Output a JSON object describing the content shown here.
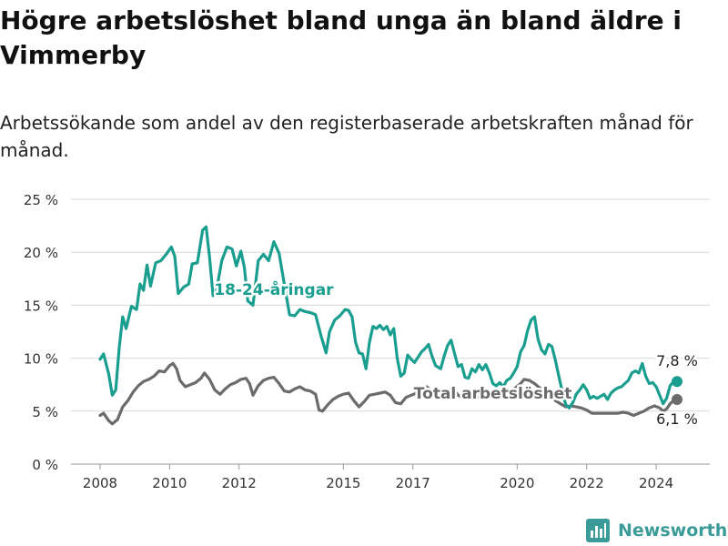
{
  "title": "Högre arbetslöshet bland unga än bland äldre i Vimmerby",
  "subtitle": "Arbetssökande som andel av den registerbaserade arbetskraften månad för månad.",
  "brand": {
    "name": "Newsworthy",
    "icon": "newsworthy-bar-chart-logo-icon"
  },
  "colors": {
    "youth": "#1a9e8f",
    "total": "#6b6b6e",
    "grid": "#d9d9d9"
  },
  "chart_data": {
    "type": "line",
    "title": "",
    "xlabel": "",
    "ylabel": "",
    "ylim": [
      0,
      25
    ],
    "yticks": [
      0,
      5,
      10,
      15,
      20,
      25
    ],
    "ytick_labels": [
      "0 %",
      "5 %",
      "10 %",
      "15 %",
      "20 %",
      "25 %"
    ],
    "xticks": [
      2008,
      2010,
      2012,
      2015,
      2017,
      2020,
      2022,
      2024
    ],
    "xtick_labels": [
      "2008",
      "2010",
      "2012",
      "2015",
      "2017",
      "2020",
      "2022",
      "2024"
    ],
    "grid": true,
    "legend": "inline labels",
    "series": [
      {
        "name": "18-24-åringar",
        "color": "#1a9e8f",
        "end_label": "7,8 %",
        "points": [
          [
            2008.0,
            9.9
          ],
          [
            2008.1,
            10.4
          ],
          [
            2008.25,
            8.5
          ],
          [
            2008.35,
            6.5
          ],
          [
            2008.45,
            7.0
          ],
          [
            2008.55,
            11.0
          ],
          [
            2008.65,
            13.9
          ],
          [
            2008.75,
            12.8
          ],
          [
            2008.9,
            14.9
          ],
          [
            2009.05,
            14.6
          ],
          [
            2009.15,
            17.0
          ],
          [
            2009.25,
            16.4
          ],
          [
            2009.35,
            18.8
          ],
          [
            2009.45,
            16.8
          ],
          [
            2009.6,
            19.0
          ],
          [
            2009.75,
            19.2
          ],
          [
            2009.9,
            19.8
          ],
          [
            2010.05,
            20.5
          ],
          [
            2010.15,
            19.6
          ],
          [
            2010.25,
            16.1
          ],
          [
            2010.4,
            16.7
          ],
          [
            2010.55,
            17.0
          ],
          [
            2010.65,
            18.9
          ],
          [
            2010.8,
            19.0
          ],
          [
            2010.95,
            22.1
          ],
          [
            2011.05,
            22.4
          ],
          [
            2011.15,
            19.5
          ],
          [
            2011.25,
            15.9
          ],
          [
            2011.35,
            16.4
          ],
          [
            2011.5,
            19.2
          ],
          [
            2011.65,
            20.5
          ],
          [
            2011.8,
            20.3
          ],
          [
            2011.92,
            18.7
          ],
          [
            2012.05,
            20.1
          ],
          [
            2012.15,
            18.6
          ],
          [
            2012.25,
            15.4
          ],
          [
            2012.4,
            15.0
          ],
          [
            2012.55,
            19.2
          ],
          [
            2012.7,
            19.8
          ],
          [
            2012.85,
            19.2
          ],
          [
            2013.0,
            21.0
          ],
          [
            2013.15,
            19.9
          ],
          [
            2013.3,
            17.0
          ],
          [
            2013.45,
            14.1
          ],
          [
            2013.6,
            14.0
          ],
          [
            2013.75,
            14.6
          ],
          [
            2013.9,
            14.4
          ],
          [
            2014.05,
            14.3
          ],
          [
            2014.2,
            14.1
          ],
          [
            2014.35,
            12.2
          ],
          [
            2014.5,
            10.5
          ],
          [
            2014.6,
            12.5
          ],
          [
            2014.75,
            13.6
          ],
          [
            2014.9,
            14.0
          ],
          [
            2015.05,
            14.6
          ],
          [
            2015.15,
            14.5
          ],
          [
            2015.25,
            13.9
          ],
          [
            2015.35,
            11.5
          ],
          [
            2015.45,
            10.5
          ],
          [
            2015.55,
            10.4
          ],
          [
            2015.65,
            9.0
          ],
          [
            2015.75,
            11.5
          ],
          [
            2015.85,
            13.0
          ],
          [
            2015.95,
            12.8
          ],
          [
            2016.05,
            13.1
          ],
          [
            2016.15,
            12.7
          ],
          [
            2016.25,
            13.0
          ],
          [
            2016.35,
            12.2
          ],
          [
            2016.45,
            12.8
          ],
          [
            2016.55,
            10.0
          ],
          [
            2016.65,
            8.3
          ],
          [
            2016.75,
            8.6
          ],
          [
            2016.85,
            10.3
          ],
          [
            2016.95,
            9.9
          ],
          [
            2017.05,
            9.6
          ],
          [
            2017.15,
            10.1
          ],
          [
            2017.25,
            10.6
          ],
          [
            2017.35,
            10.9
          ],
          [
            2017.45,
            11.3
          ],
          [
            2017.55,
            10.2
          ],
          [
            2017.65,
            9.3
          ],
          [
            2017.8,
            9.0
          ],
          [
            2017.9,
            10.2
          ],
          [
            2018.0,
            11.2
          ],
          [
            2018.1,
            11.7
          ],
          [
            2018.2,
            10.4
          ],
          [
            2018.3,
            9.2
          ],
          [
            2018.4,
            9.4
          ],
          [
            2018.5,
            8.2
          ],
          [
            2018.6,
            8.1
          ],
          [
            2018.7,
            9.0
          ],
          [
            2018.8,
            8.7
          ],
          [
            2018.9,
            9.4
          ],
          [
            2019.0,
            8.9
          ],
          [
            2019.1,
            9.4
          ],
          [
            2019.2,
            8.6
          ],
          [
            2019.3,
            7.6
          ],
          [
            2019.4,
            7.4
          ],
          [
            2019.5,
            7.7
          ],
          [
            2019.6,
            7.3
          ],
          [
            2019.7,
            7.9
          ],
          [
            2019.8,
            8.1
          ],
          [
            2019.9,
            8.6
          ],
          [
            2020.0,
            9.2
          ],
          [
            2020.1,
            10.6
          ],
          [
            2020.2,
            11.2
          ],
          [
            2020.3,
            12.6
          ],
          [
            2020.4,
            13.6
          ],
          [
            2020.5,
            13.9
          ],
          [
            2020.6,
            11.8
          ],
          [
            2020.7,
            10.8
          ],
          [
            2020.8,
            10.4
          ],
          [
            2020.9,
            11.3
          ],
          [
            2021.0,
            11.1
          ],
          [
            2021.1,
            9.8
          ],
          [
            2021.2,
            8.3
          ],
          [
            2021.3,
            6.8
          ],
          [
            2021.4,
            5.6
          ],
          [
            2021.5,
            5.3
          ],
          [
            2021.6,
            5.8
          ],
          [
            2021.7,
            6.6
          ],
          [
            2021.8,
            7.0
          ],
          [
            2021.9,
            7.5
          ],
          [
            2022.0,
            7.0
          ],
          [
            2022.1,
            6.2
          ],
          [
            2022.2,
            6.4
          ],
          [
            2022.3,
            6.2
          ],
          [
            2022.4,
            6.4
          ],
          [
            2022.5,
            6.6
          ],
          [
            2022.6,
            6.1
          ],
          [
            2022.7,
            6.7
          ],
          [
            2022.8,
            7.0
          ],
          [
            2022.9,
            7.2
          ],
          [
            2023.0,
            7.3
          ],
          [
            2023.1,
            7.6
          ],
          [
            2023.2,
            7.9
          ],
          [
            2023.3,
            8.6
          ],
          [
            2023.4,
            8.8
          ],
          [
            2023.5,
            8.6
          ],
          [
            2023.6,
            9.5
          ],
          [
            2023.7,
            8.3
          ],
          [
            2023.8,
            7.6
          ],
          [
            2023.9,
            7.7
          ],
          [
            2024.0,
            7.3
          ],
          [
            2024.1,
            6.5
          ],
          [
            2024.2,
            5.7
          ],
          [
            2024.3,
            6.2
          ],
          [
            2024.4,
            7.4
          ],
          [
            2024.5,
            7.8
          ],
          [
            2024.6,
            7.8
          ]
        ]
      },
      {
        "name": "Total arbetslöshet",
        "color": "#6b6b6e",
        "end_label": "6,1 %",
        "points": [
          [
            2008.0,
            4.6
          ],
          [
            2008.1,
            4.8
          ],
          [
            2008.25,
            4.1
          ],
          [
            2008.35,
            3.8
          ],
          [
            2008.5,
            4.2
          ],
          [
            2008.65,
            5.4
          ],
          [
            2008.8,
            6.0
          ],
          [
            2008.95,
            6.8
          ],
          [
            2009.1,
            7.4
          ],
          [
            2009.25,
            7.8
          ],
          [
            2009.4,
            8.0
          ],
          [
            2009.55,
            8.3
          ],
          [
            2009.7,
            8.8
          ],
          [
            2009.85,
            8.7
          ],
          [
            2010.0,
            9.3
          ],
          [
            2010.1,
            9.5
          ],
          [
            2010.2,
            9.0
          ],
          [
            2010.3,
            7.9
          ],
          [
            2010.45,
            7.3
          ],
          [
            2010.6,
            7.5
          ],
          [
            2010.75,
            7.7
          ],
          [
            2010.9,
            8.1
          ],
          [
            2011.0,
            8.6
          ],
          [
            2011.15,
            8.0
          ],
          [
            2011.3,
            7.0
          ],
          [
            2011.45,
            6.6
          ],
          [
            2011.6,
            7.1
          ],
          [
            2011.75,
            7.5
          ],
          [
            2011.9,
            7.7
          ],
          [
            2012.05,
            8.0
          ],
          [
            2012.2,
            8.1
          ],
          [
            2012.3,
            7.6
          ],
          [
            2012.4,
            6.5
          ],
          [
            2012.55,
            7.4
          ],
          [
            2012.7,
            7.9
          ],
          [
            2012.85,
            8.1
          ],
          [
            2013.0,
            8.2
          ],
          [
            2013.15,
            7.6
          ],
          [
            2013.3,
            6.9
          ],
          [
            2013.45,
            6.8
          ],
          [
            2013.6,
            7.1
          ],
          [
            2013.75,
            7.3
          ],
          [
            2013.9,
            7.0
          ],
          [
            2014.05,
            6.9
          ],
          [
            2014.2,
            6.6
          ],
          [
            2014.3,
            5.1
          ],
          [
            2014.4,
            5.0
          ],
          [
            2014.55,
            5.6
          ],
          [
            2014.7,
            6.1
          ],
          [
            2014.85,
            6.4
          ],
          [
            2015.0,
            6.6
          ],
          [
            2015.15,
            6.7
          ],
          [
            2015.3,
            6.0
          ],
          [
            2015.45,
            5.4
          ],
          [
            2015.6,
            5.9
          ],
          [
            2015.75,
            6.5
          ],
          [
            2015.9,
            6.6
          ],
          [
            2016.05,
            6.7
          ],
          [
            2016.2,
            6.8
          ],
          [
            2016.35,
            6.5
          ],
          [
            2016.5,
            5.8
          ],
          [
            2016.65,
            5.7
          ],
          [
            2016.8,
            6.3
          ],
          [
            2016.95,
            6.5
          ],
          [
            2017.1,
            6.7
          ],
          [
            2017.25,
            7.1
          ],
          [
            2017.4,
            7.3
          ],
          [
            2017.55,
            6.8
          ],
          [
            2017.7,
            6.5
          ],
          [
            2017.85,
            6.4
          ],
          [
            2018.0,
            6.9
          ],
          [
            2018.15,
            7.2
          ],
          [
            2018.3,
            6.5
          ],
          [
            2018.45,
            6.2
          ],
          [
            2018.6,
            6.3
          ],
          [
            2018.75,
            6.4
          ],
          [
            2018.9,
            6.3
          ],
          [
            2019.05,
            6.6
          ],
          [
            2019.2,
            6.5
          ],
          [
            2019.35,
            6.4
          ],
          [
            2019.5,
            6.3
          ],
          [
            2019.65,
            6.5
          ],
          [
            2019.8,
            6.8
          ],
          [
            2019.95,
            7.2
          ],
          [
            2020.1,
            7.6
          ],
          [
            2020.2,
            8.0
          ],
          [
            2020.35,
            7.9
          ],
          [
            2020.5,
            7.6
          ],
          [
            2020.65,
            7.2
          ],
          [
            2020.8,
            6.8
          ],
          [
            2020.95,
            6.4
          ],
          [
            2021.1,
            6.0
          ],
          [
            2021.25,
            5.7
          ],
          [
            2021.4,
            5.4
          ],
          [
            2021.55,
            5.5
          ],
          [
            2021.7,
            5.4
          ],
          [
            2021.85,
            5.3
          ],
          [
            2022.0,
            5.1
          ],
          [
            2022.15,
            4.8
          ],
          [
            2022.3,
            4.8
          ],
          [
            2022.45,
            4.8
          ],
          [
            2022.6,
            4.8
          ],
          [
            2022.75,
            4.8
          ],
          [
            2022.9,
            4.8
          ],
          [
            2023.05,
            4.9
          ],
          [
            2023.2,
            4.8
          ],
          [
            2023.35,
            4.6
          ],
          [
            2023.5,
            4.8
          ],
          [
            2023.65,
            5.0
          ],
          [
            2023.8,
            5.3
          ],
          [
            2023.95,
            5.5
          ],
          [
            2024.1,
            5.3
          ],
          [
            2024.2,
            5.0
          ],
          [
            2024.3,
            5.2
          ],
          [
            2024.4,
            5.7
          ],
          [
            2024.5,
            6.0
          ],
          [
            2024.6,
            6.1
          ]
        ]
      }
    ]
  }
}
